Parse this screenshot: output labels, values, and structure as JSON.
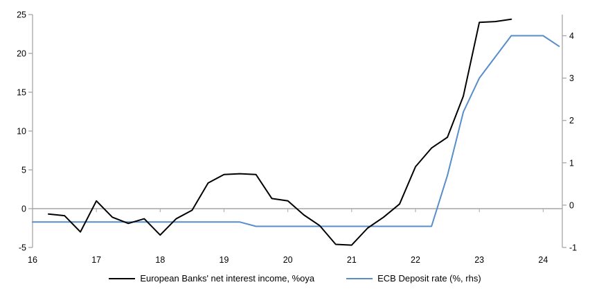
{
  "chart_data": {
    "type": "line",
    "title": "",
    "x_axis": {
      "labels": [
        "16",
        "17",
        "18",
        "19",
        "20",
        "21",
        "22",
        "23",
        "24"
      ],
      "start": 16,
      "end": 24.3
    },
    "left_axis": {
      "min": -5,
      "max": 25,
      "ticks": [
        25,
        20,
        15,
        10,
        5,
        0,
        -5
      ]
    },
    "right_axis": {
      "min": -1,
      "max": 4.5,
      "ticks": [
        4,
        3,
        2,
        1,
        0,
        -1
      ]
    },
    "grid": "zero-line-only",
    "legend_position": "bottom",
    "series": [
      {
        "name": "European Banks' net interest income, %oya",
        "color": "#000000",
        "axis": "left",
        "x": [
          16.25,
          16.5,
          16.75,
          17.0,
          17.25,
          17.5,
          17.75,
          18.0,
          18.25,
          18.5,
          18.75,
          19.0,
          19.25,
          19.5,
          19.75,
          20.0,
          20.25,
          20.5,
          20.75,
          21.0,
          21.25,
          21.5,
          21.75,
          22.0,
          22.25,
          22.5,
          22.75,
          23.0,
          23.25,
          23.5
        ],
        "values": [
          -0.7,
          -0.9,
          -3.0,
          1.0,
          -1.1,
          -1.9,
          -1.3,
          -3.4,
          -1.3,
          -0.2,
          3.3,
          4.4,
          4.5,
          4.4,
          1.3,
          1.0,
          -0.8,
          -2.2,
          -4.6,
          -4.7,
          -2.5,
          -1.1,
          0.6,
          5.4,
          7.8,
          9.2,
          14.5,
          24.0,
          24.1,
          24.4
        ]
      },
      {
        "name": "ECB Deposit rate (%, rhs)",
        "color": "#578dc8",
        "axis": "right",
        "x": [
          16.0,
          16.25,
          16.5,
          16.75,
          17.0,
          17.25,
          17.5,
          17.75,
          18.0,
          18.25,
          18.5,
          18.75,
          19.0,
          19.25,
          19.5,
          19.75,
          20.0,
          20.25,
          20.5,
          20.75,
          21.0,
          21.25,
          21.5,
          21.75,
          22.0,
          22.25,
          22.5,
          22.75,
          23.0,
          23.25,
          23.5,
          23.75,
          24.0,
          24.25
        ],
        "values": [
          -0.4,
          -0.4,
          -0.4,
          -0.4,
          -0.4,
          -0.4,
          -0.4,
          -0.4,
          -0.4,
          -0.4,
          -0.4,
          -0.4,
          -0.4,
          -0.4,
          -0.5,
          -0.5,
          -0.5,
          -0.5,
          -0.5,
          -0.5,
          -0.5,
          -0.5,
          -0.5,
          -0.5,
          -0.5,
          -0.5,
          0.7,
          2.2,
          3.0,
          3.5,
          4.0,
          4.0,
          4.0,
          3.75
        ]
      }
    ],
    "colors": {
      "axis_gray": "#a6a6a6",
      "zero_line_gray": "#a6a6a6",
      "background": "#ffffff"
    }
  }
}
